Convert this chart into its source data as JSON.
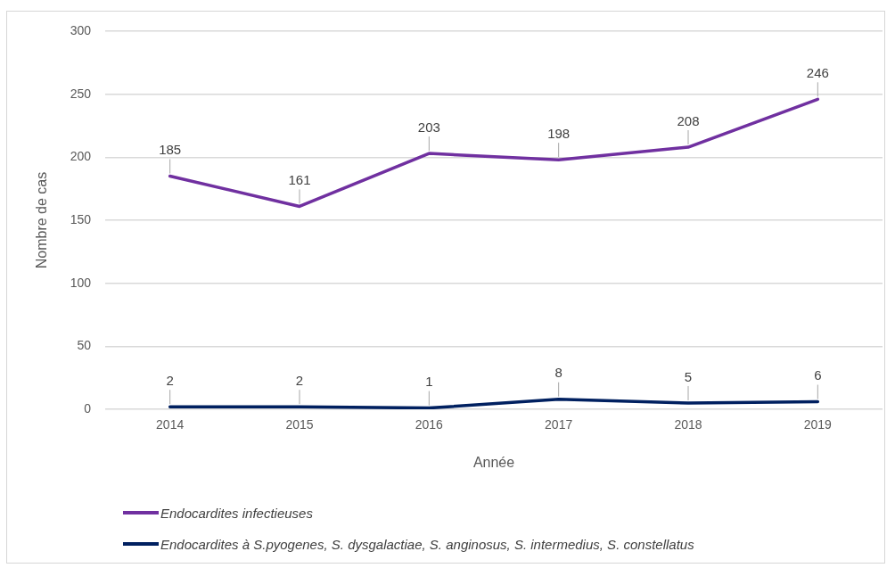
{
  "chart_data": {
    "type": "line",
    "xlabel": "Année",
    "ylabel": "Nombre de cas",
    "categories": [
      "2014",
      "2015",
      "2016",
      "2017",
      "2018",
      "2019"
    ],
    "series": [
      {
        "name": "Endocardites infectieuses",
        "color": "#7030a0",
        "values": [
          185,
          161,
          203,
          198,
          208,
          246
        ]
      },
      {
        "name": "Endocardites à S.pyogenes, S. dysgalactiae, S. anginosus, S. intermedius, S. constellatus",
        "color": "#002060",
        "values": [
          2,
          2,
          1,
          8,
          5,
          6
        ]
      }
    ],
    "ylim": [
      0,
      300
    ],
    "yticks": [
      0,
      50,
      100,
      150,
      200,
      250,
      300
    ],
    "grid": "y",
    "legend": "bottom left",
    "data_labels": true,
    "marker": "none",
    "line_style": "solid"
  }
}
